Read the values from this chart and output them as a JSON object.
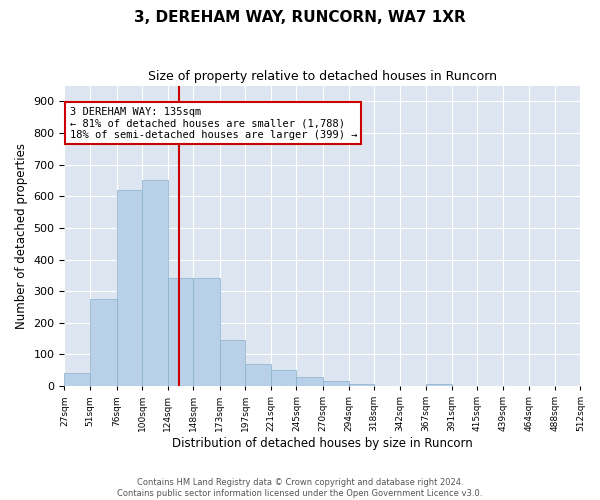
{
  "title": "3, DEREHAM WAY, RUNCORN, WA7 1XR",
  "subtitle": "Size of property relative to detached houses in Runcorn",
  "xlabel": "Distribution of detached houses by size in Runcorn",
  "ylabel": "Number of detached properties",
  "bin_edges": [
    27,
    51,
    76,
    100,
    124,
    148,
    173,
    197,
    221,
    245,
    270,
    294,
    318,
    342,
    367,
    391,
    415,
    439,
    464,
    488,
    512
  ],
  "bar_heights": [
    40,
    275,
    620,
    650,
    340,
    340,
    145,
    70,
    50,
    30,
    15,
    5,
    0,
    0,
    5,
    0,
    0,
    0,
    0,
    0
  ],
  "bar_color": "#b8d0e8",
  "bar_edgecolor": "#8ab0cc",
  "vline_x": 135,
  "vline_color": "#cc0000",
  "annotation_text": "3 DEREHAM WAY: 135sqm\n← 81% of detached houses are smaller (1,788)\n18% of semi-detached houses are larger (399) →",
  "annotation_box_color": "#ffffff",
  "annotation_box_edgecolor": "#cc0000",
  "ylim": [
    0,
    950
  ],
  "yticks": [
    0,
    100,
    200,
    300,
    400,
    500,
    600,
    700,
    800,
    900
  ],
  "bg_color": "#dde6f0",
  "footer_line1": "Contains HM Land Registry data © Crown copyright and database right 2024.",
  "footer_line2": "Contains public sector information licensed under the Open Government Licence v3.0."
}
